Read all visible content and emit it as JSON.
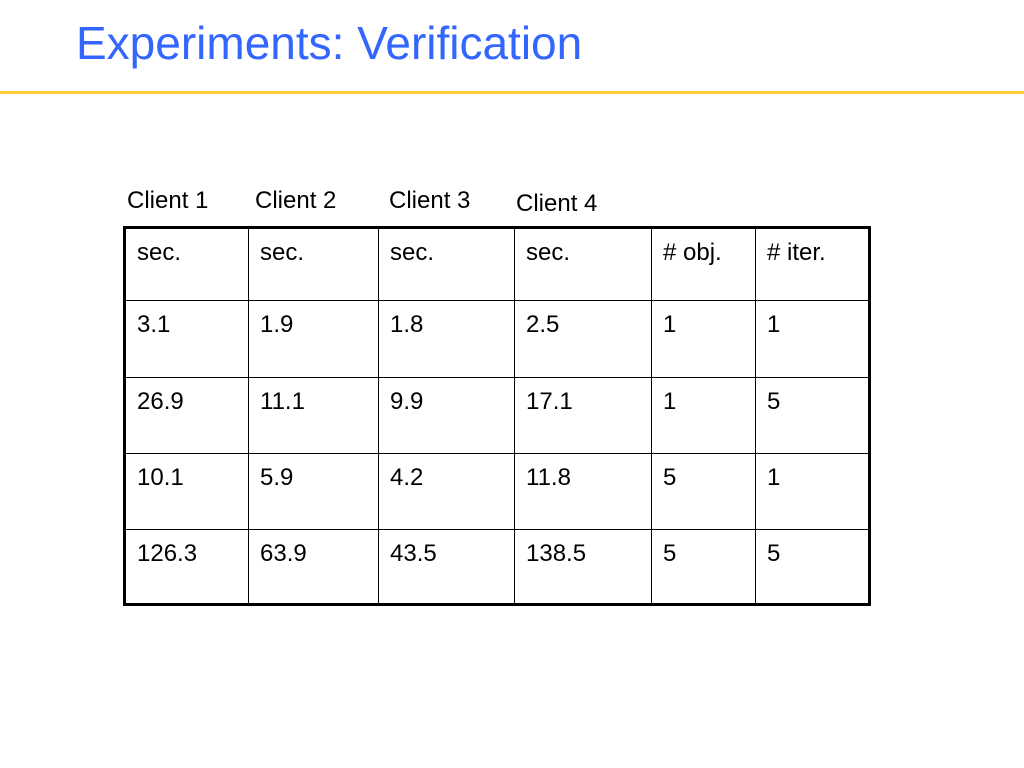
{
  "slide": {
    "title": "Experiments: Verification"
  },
  "column_labels": [
    "Client 1",
    "Client 2",
    "Client 3",
    "Client 4"
  ],
  "table": {
    "rows": [
      [
        "sec.",
        "sec.",
        "sec.",
        "sec.",
        "# obj.",
        "# iter."
      ],
      [
        "3.1",
        "1.9",
        "1.8",
        "2.5",
        "1",
        "1"
      ],
      [
        "26.9",
        "11.1",
        "9.9",
        "17.1",
        "1",
        "5"
      ],
      [
        "10.1",
        "5.9",
        "4.2",
        "11.8",
        "5",
        "1"
      ],
      [
        "126.3",
        "63.9",
        "43.5",
        "138.5",
        "5",
        "5"
      ]
    ]
  },
  "colors": {
    "title": "#3366FF",
    "rule": "#FFCC33"
  }
}
